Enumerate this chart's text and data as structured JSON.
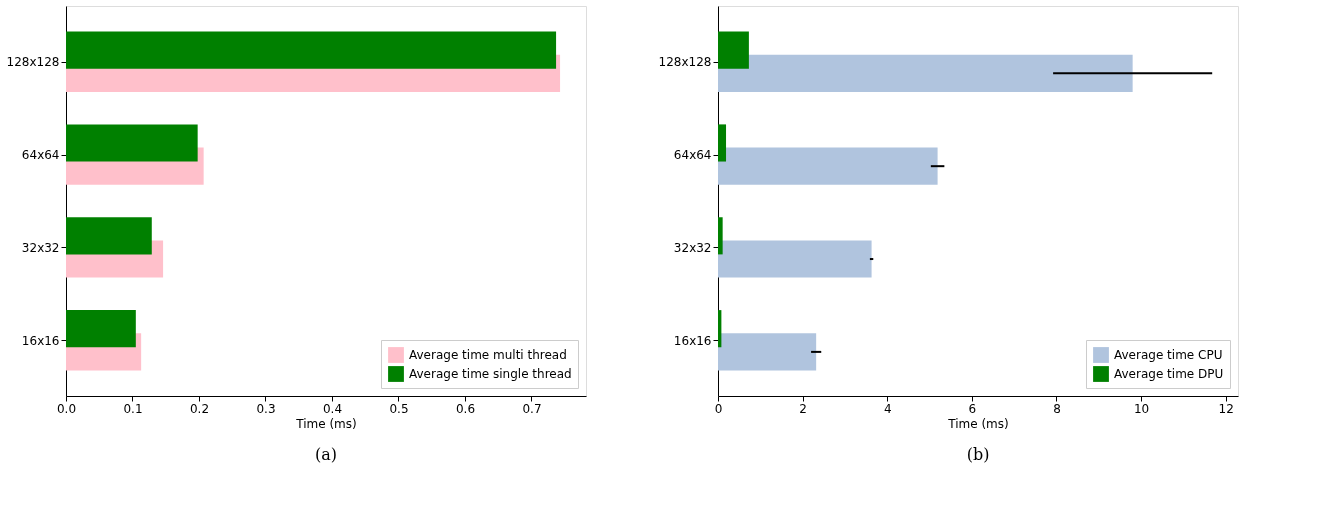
{
  "chart_data": [
    {
      "type": "bar",
      "orientation": "horizontal",
      "title": "(a)",
      "xlabel": "Time (ms)",
      "categories": [
        "128x128",
        "64x64",
        "32x32",
        "16x16"
      ],
      "series": [
        {
          "name": "Average time multi thread",
          "color": "#ffc0cb",
          "values": [
            0.743,
            0.207,
            0.146,
            0.113
          ]
        },
        {
          "name": "Average time single thread",
          "color": "#008000",
          "values": [
            0.737,
            0.198,
            0.129,
            0.105
          ]
        }
      ],
      "xlim": [
        0,
        0.782
      ],
      "xticks": [
        {
          "value": 0,
          "label": "0.0"
        },
        0.1,
        0.2,
        0.3,
        0.4,
        0.5,
        0.6,
        0.7
      ],
      "grid": false,
      "legend": "bottom right"
    },
    {
      "type": "bar",
      "orientation": "horizontal",
      "title": "(b)",
      "xlabel": "Time (ms)",
      "categories": [
        "128x128",
        "64x64",
        "32x32",
        "16x16"
      ],
      "series": [
        {
          "name": "Average time CPU",
          "color": "#b0c4de",
          "values": [
            9.8,
            5.19,
            3.63,
            2.32
          ],
          "errors": [
            1.88,
            0.16,
            0.04,
            0.12
          ]
        },
        {
          "name": "Average time DPU",
          "color": "#008000",
          "values": [
            0.73,
            0.19,
            0.11,
            0.08
          ]
        }
      ],
      "xlim": [
        0,
        12.29
      ],
      "xticks": [
        0,
        2,
        4,
        6,
        8,
        10,
        12
      ],
      "grid": false,
      "legend": "bottom right"
    }
  ]
}
